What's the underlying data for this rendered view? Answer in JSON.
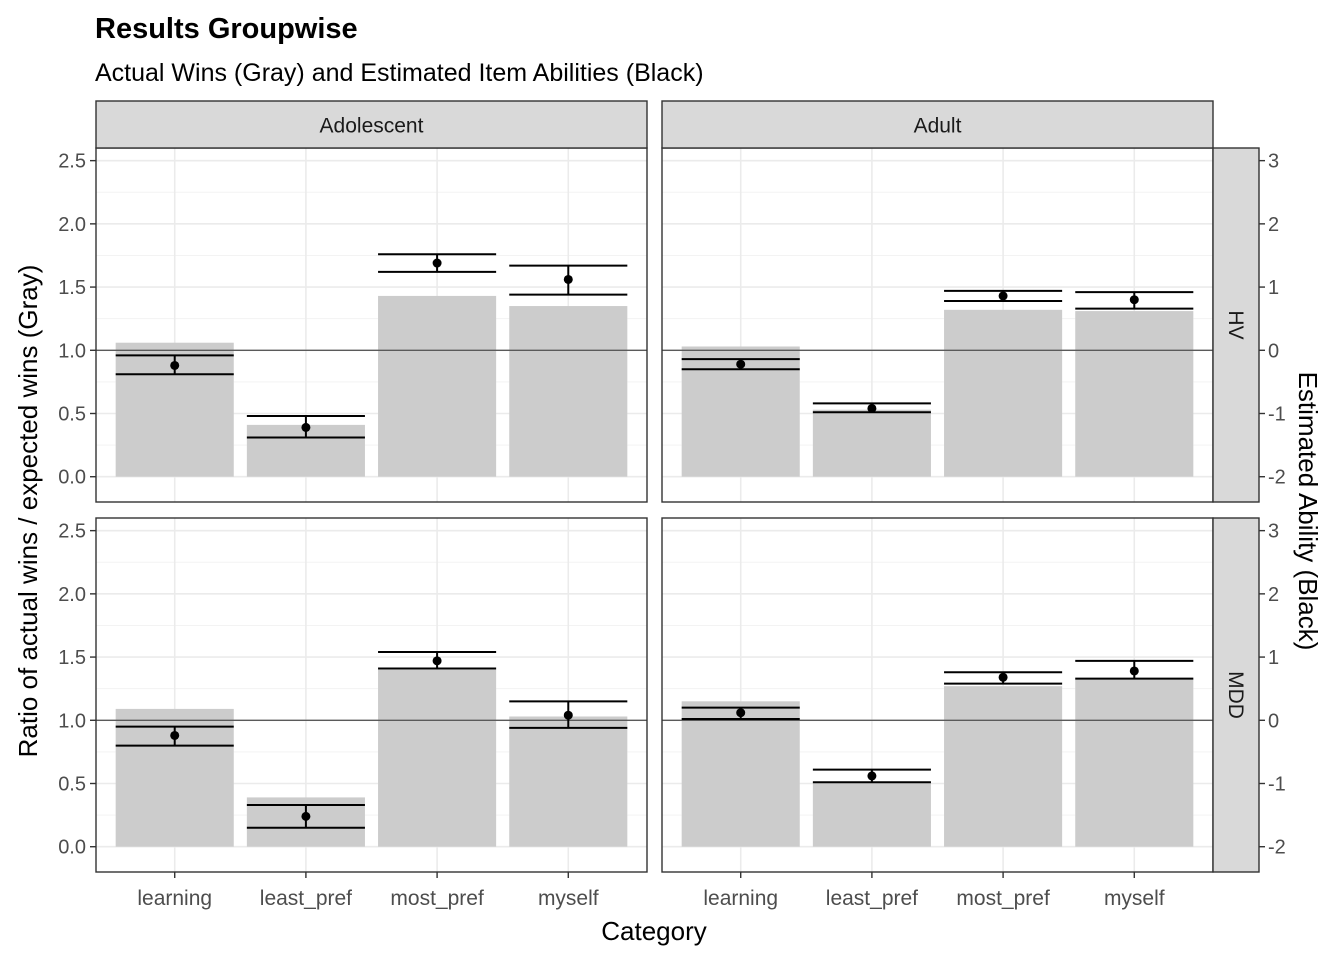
{
  "chart_data": {
    "type": "bar",
    "title": "Results Groupwise",
    "subtitle": "Actual Wins (Gray) and Estimated Item Abilities (Black)",
    "xlabel": "Category",
    "ylabel": "Ratio of actual wins / expected wins (Gray)",
    "y2label": "Estimated Ability (Black)",
    "categories": [
      "learning",
      "least_pref",
      "most_pref",
      "myself"
    ],
    "ylim": [
      -0.2,
      2.6
    ],
    "y2lim": [
      -2.4,
      3.2
    ],
    "yticks": [
      0.0,
      0.5,
      1.0,
      1.5,
      2.0,
      2.5
    ],
    "yticklabels": [
      "0.0",
      "0.5",
      "1.0",
      "1.5",
      "2.0",
      "2.5"
    ],
    "y2ticks": [
      -2,
      -1,
      0,
      1,
      2,
      3
    ],
    "y2ticklabels": [
      "-2",
      "-1",
      "0",
      "1",
      "2",
      "3"
    ],
    "reference_line": 1.0,
    "facet_cols": [
      "Adolescent",
      "Adult"
    ],
    "facet_rows": [
      "HV",
      "MDD"
    ],
    "colors": {
      "bar": "#cccccc",
      "estimate": "#000000",
      "strip": "#d9d9d9",
      "grid": "#ebebeb",
      "panel_border": "#333333"
    },
    "grid": true,
    "panels": [
      {
        "col": "Adolescent",
        "row": "HV",
        "bars": [
          1.06,
          0.41,
          1.43,
          1.35
        ],
        "estimates": [
          {
            "point": 0.88,
            "lower": 0.81,
            "upper": 0.96
          },
          {
            "point": 0.39,
            "lower": 0.31,
            "upper": 0.48
          },
          {
            "point": 1.69,
            "lower": 1.62,
            "upper": 1.76
          },
          {
            "point": 1.56,
            "lower": 1.44,
            "upper": 1.67
          }
        ]
      },
      {
        "col": "Adult",
        "row": "HV",
        "bars": [
          1.03,
          0.53,
          1.32,
          1.31
        ],
        "estimates": [
          {
            "point": 0.89,
            "lower": 0.85,
            "upper": 0.93
          },
          {
            "point": 0.54,
            "lower": 0.51,
            "upper": 0.58
          },
          {
            "point": 1.43,
            "lower": 1.39,
            "upper": 1.47
          },
          {
            "point": 1.4,
            "lower": 1.33,
            "upper": 1.46
          }
        ]
      },
      {
        "col": "Adolescent",
        "row": "MDD",
        "bars": [
          1.09,
          0.39,
          1.4,
          1.03
        ],
        "estimates": [
          {
            "point": 0.88,
            "lower": 0.8,
            "upper": 0.95
          },
          {
            "point": 0.24,
            "lower": 0.15,
            "upper": 0.33
          },
          {
            "point": 1.47,
            "lower": 1.41,
            "upper": 1.54
          },
          {
            "point": 1.04,
            "lower": 0.94,
            "upper": 1.15
          }
        ]
      },
      {
        "col": "Adult",
        "row": "MDD",
        "bars": [
          1.15,
          0.51,
          1.27,
          1.33
        ],
        "estimates": [
          {
            "point": 1.06,
            "lower": 1.01,
            "upper": 1.1
          },
          {
            "point": 0.56,
            "lower": 0.51,
            "upper": 0.61
          },
          {
            "point": 1.34,
            "lower": 1.29,
            "upper": 1.38
          },
          {
            "point": 1.39,
            "lower": 1.33,
            "upper": 1.47
          }
        ]
      }
    ]
  }
}
